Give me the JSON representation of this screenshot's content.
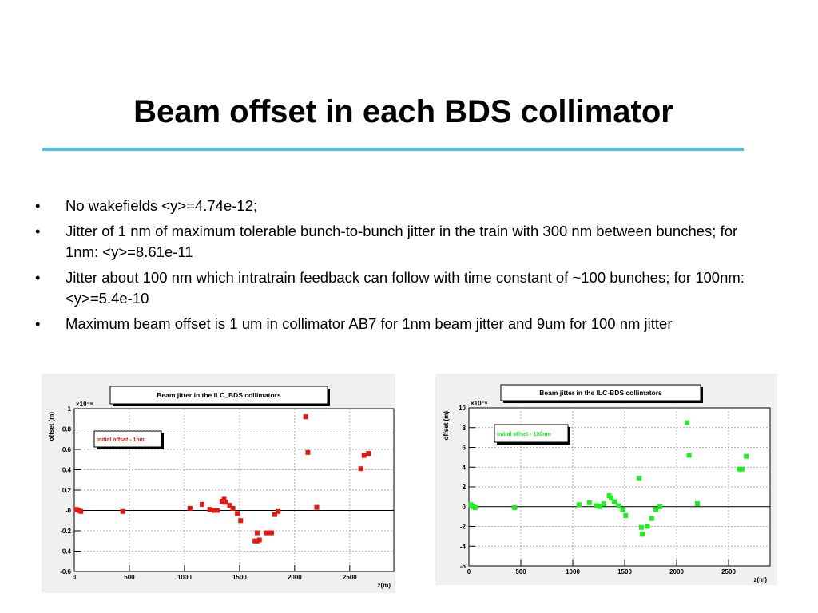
{
  "slide": {
    "title": "Beam offset in each BDS collimator",
    "bullets": [
      " No wakefields <y>=4.74e-12;",
      "Jitter of 1 nm of maximum tolerable bunch-to-bunch jitter in the train with 300 nm between bunches; for 1nm: <y>=8.61e-11",
      "Jitter about 100 nm which intratrain feedback can follow with time constant of ~100 bunches; for 100nm: <y>=5.4e-10",
      "Maximum beam offset is 1 um in collimator AB7 for 1nm beam jitter and 9um for 100 nm jitter"
    ],
    "bullet_char": "•",
    "colors": {
      "accent_rule": "#4dc0ee",
      "series_left": "#e8160f",
      "series_right": "#19f01c"
    }
  },
  "chart_data": [
    {
      "type": "scatter",
      "title": "Beam jitter in the ILC_BDS collimators",
      "ylabel": "offset (m)",
      "xlabel": "z(m)",
      "exponent": "×10⁻⁶",
      "xlim": [
        0,
        2900
      ],
      "ylim": [
        -0.6,
        1.0
      ],
      "xticks": [
        "0",
        "500",
        "1000",
        "1500",
        "2000",
        "2500"
      ],
      "xtick_values": [
        0,
        500,
        1000,
        1500,
        2000,
        2500
      ],
      "yticks": [
        "-0.6",
        "-0.4",
        "-0.2",
        "-0",
        "0.2",
        "0.4",
        "0.6",
        "0.8",
        "1"
      ],
      "ytick_values": [
        -0.6,
        -0.4,
        -0.2,
        0,
        0.2,
        0.4,
        0.6,
        0.8,
        1.0
      ],
      "grid": true,
      "legend": "initial offset - 1nm",
      "legend_position": "top-left",
      "color": "#e8160f",
      "series": [
        {
          "x": [
            20,
            40,
            60,
            440,
            1050,
            1160,
            1230,
            1270,
            1300,
            1340,
            1360,
            1370,
            1410,
            1440,
            1480,
            1510,
            1640,
            1660,
            1660,
            1680,
            1740,
            1760,
            1790,
            1820,
            1850,
            2100,
            2120,
            2200,
            2600,
            2630,
            2670
          ],
          "y": [
            0.01,
            0.0,
            -0.01,
            -0.01,
            0.02,
            0.06,
            0.01,
            0.0,
            0.0,
            0.09,
            0.11,
            0.08,
            0.05,
            0.02,
            -0.03,
            -0.1,
            -0.3,
            -0.22,
            -0.3,
            -0.29,
            -0.22,
            -0.22,
            -0.22,
            -0.04,
            -0.01,
            0.92,
            0.57,
            0.03,
            0.41,
            0.54,
            0.56
          ]
        }
      ]
    },
    {
      "type": "scatter",
      "title": "Beam jitter in the ILC-BDS collimators",
      "ylabel": "offset (m)",
      "xlabel": "z(m)",
      "exponent": "×10⁻⁶",
      "xlim": [
        0,
        2900
      ],
      "ylim": [
        -6,
        10
      ],
      "xticks": [
        "0",
        "500",
        "1000",
        "1500",
        "2000",
        "2500"
      ],
      "xtick_values": [
        0,
        500,
        1000,
        1500,
        2000,
        2500
      ],
      "yticks": [
        "-6",
        "-4",
        "-2",
        "0",
        "2",
        "4",
        "6",
        "8",
        "10"
      ],
      "ytick_values": [
        -6,
        -4,
        -2,
        0,
        2,
        4,
        6,
        8,
        10
      ],
      "grid": true,
      "legend": "initial offset - 100nm",
      "legend_position": "top-left",
      "color": "#19f01c",
      "series": [
        {
          "x": [
            20,
            40,
            60,
            440,
            1060,
            1160,
            1230,
            1260,
            1300,
            1350,
            1370,
            1400,
            1440,
            1480,
            1510,
            1640,
            1660,
            1670,
            1720,
            1760,
            1800,
            1840,
            2100,
            2120,
            2200,
            2600,
            2630,
            2670
          ],
          "y": [
            0.2,
            0.0,
            -0.1,
            -0.1,
            0.2,
            0.4,
            0.1,
            0.0,
            0.3,
            1.1,
            0.9,
            0.5,
            0.1,
            -0.3,
            -0.9,
            2.9,
            -2.1,
            -2.8,
            -2.0,
            -1.2,
            -0.3,
            0.0,
            8.5,
            5.2,
            0.3,
            3.8,
            3.8,
            5.1
          ]
        }
      ]
    }
  ]
}
